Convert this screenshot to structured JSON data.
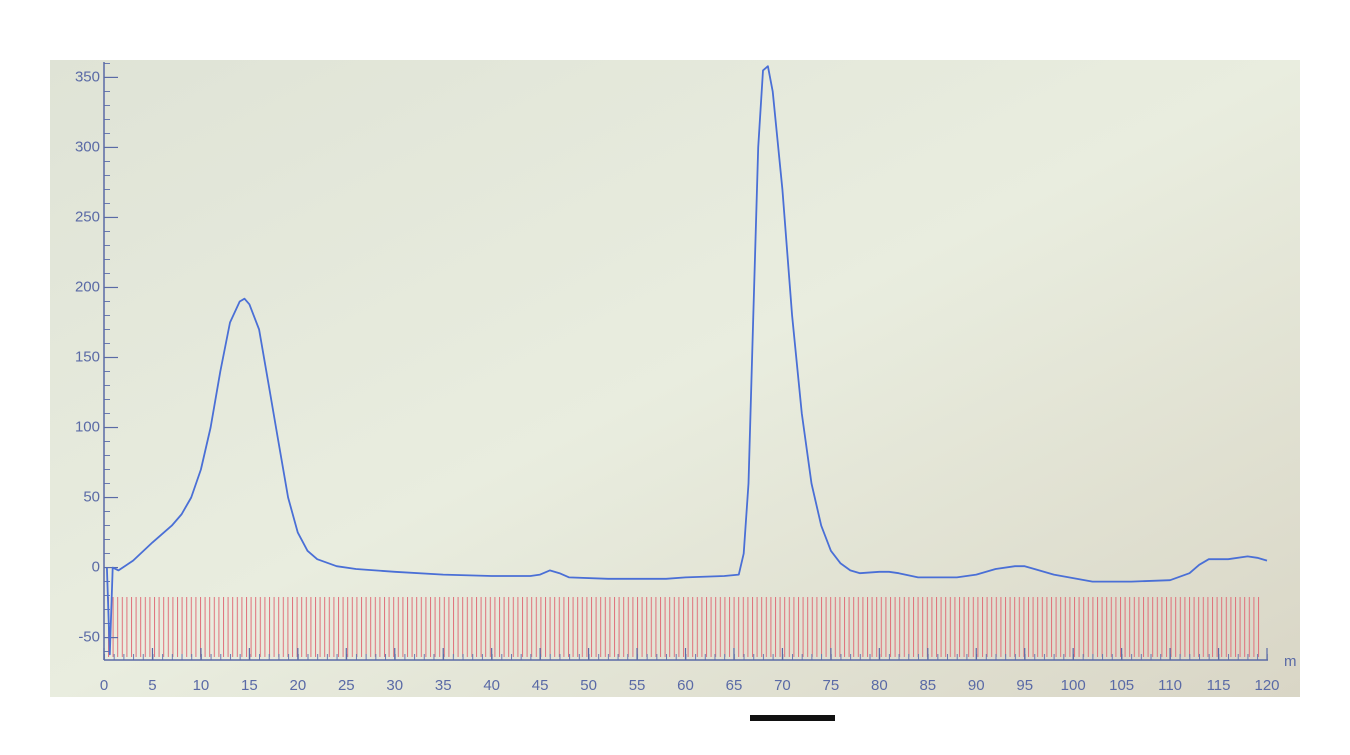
{
  "chart_data": {
    "type": "line",
    "x_label": "m",
    "x": [
      0.3,
      0.6,
      0.9,
      1.5,
      3,
      5,
      7,
      8,
      9,
      10,
      11,
      12,
      13,
      14,
      14.5,
      15,
      16,
      17,
      18,
      19,
      20,
      21,
      22,
      24,
      26,
      30,
      35,
      40,
      44,
      45,
      46,
      47,
      48,
      52,
      58,
      60,
      64,
      65.5,
      66,
      66.5,
      67,
      67.5,
      68,
      68.5,
      69,
      70,
      71,
      72,
      73,
      74,
      75,
      76,
      77,
      78,
      80,
      81,
      82,
      84,
      88,
      90,
      92,
      94,
      95,
      96,
      98,
      102,
      106,
      110,
      112,
      113,
      114,
      115,
      116,
      118,
      119,
      120
    ],
    "y": [
      0,
      -62,
      0,
      -2,
      5,
      18,
      30,
      38,
      50,
      70,
      100,
      140,
      175,
      190,
      192,
      188,
      170,
      130,
      90,
      50,
      25,
      12,
      6,
      1,
      -1,
      -3,
      -5,
      -6,
      -6,
      -5,
      -2,
      -4,
      -7,
      -8,
      -8,
      -7,
      -6,
      -5,
      10,
      60,
      180,
      300,
      355,
      358,
      340,
      270,
      180,
      110,
      60,
      30,
      12,
      3,
      -2,
      -4,
      -3,
      -3,
      -4,
      -7,
      -7,
      -5,
      -1,
      1,
      1,
      -1,
      -5,
      -10,
      -10,
      -9,
      -4,
      2,
      6,
      6,
      6,
      8,
      7,
      5
    ],
    "color": "#4a6fd6",
    "xlim": [
      0,
      120
    ],
    "xticks": [
      0,
      5,
      10,
      15,
      20,
      25,
      30,
      35,
      40,
      45,
      50,
      55,
      60,
      65,
      70,
      75,
      80,
      85,
      90,
      95,
      100,
      105,
      110,
      115,
      120
    ],
    "ylim": [
      -66,
      361
    ],
    "yticks": [
      -50,
      0,
      50,
      100,
      150,
      200,
      250,
      300,
      350
    ],
    "grid": false
  }
}
